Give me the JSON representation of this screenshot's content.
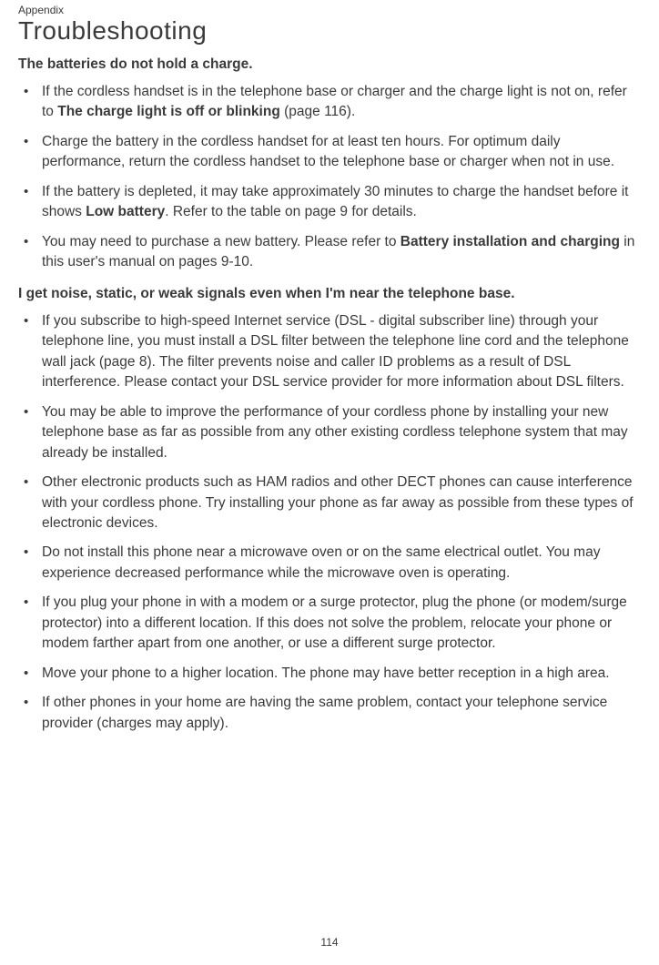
{
  "chapter": "Appendix",
  "title": "Troubleshooting",
  "section1": {
    "heading": "The batteries do not hold a charge.",
    "items": [
      {
        "pre": "If the cordless handset is in the telephone base or charger and the charge light is not on, refer to ",
        "bold": "The charge light is off or blinking",
        "post": " (page 116)."
      },
      {
        "pre": "Charge the battery in the cordless handset for at least ten hours. For optimum daily performance, return the cordless handset to the telephone base or charger when not in use.",
        "bold": "",
        "post": ""
      },
      {
        "pre": "If the battery is depleted, it may take approximately 30 minutes to charge the handset before it shows ",
        "bold": "Low battery",
        "post": ". Refer to the table on page 9 for details."
      },
      {
        "pre": "You may need to purchase a new battery. Please refer to ",
        "bold": "Battery installation and charging",
        "post": " in this user's manual on pages 9-10."
      }
    ]
  },
  "section2": {
    "heading": "I get noise, static, or weak signals even when I'm near the telephone base.",
    "items": [
      "If you subscribe to high-speed Internet service (DSL - digital subscriber line) through your telephone line, you must install a DSL filter between the telephone line cord and the telephone wall jack (page 8). The filter prevents noise and caller ID problems as a result of DSL interference. Please contact your DSL service provider for more information about DSL filters.",
      "You may be able to improve the performance of your cordless phone by installing your new telephone base as far as possible from any other existing cordless telephone system that may already be installed.",
      "Other electronic products such as HAM radios and other DECT phones can cause interference with your cordless phone. Try installing your phone as far away as possible from these types of electronic devices.",
      "Do not install this phone near a microwave oven or on the same electrical outlet. You may experience decreased performance while the microwave oven is operating.",
      "If you plug your phone in with a modem or a surge protector, plug the phone (or modem/surge protector) into a different location. If this does not solve the problem, relocate your phone or modem farther apart from one another, or use a different surge protector.",
      "Move your phone to a higher location. The phone may have better reception in a high area.",
      "If other phones in your home are having the same problem, contact your telephone service provider (charges may apply)."
    ]
  },
  "page_number": "114"
}
